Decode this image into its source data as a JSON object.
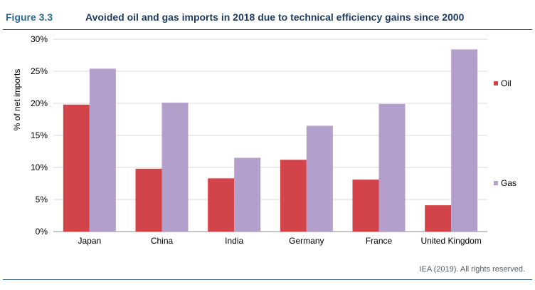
{
  "figure": {
    "label": "Figure 3.3",
    "title": "Avoided oil and gas imports in 2018 due to technical efficiency gains since 2000",
    "source": "IEA (2019). All rights reserved."
  },
  "colors": {
    "oil": "#d2444a",
    "gas": "#b39fcb",
    "grid": "#d9d9d9",
    "axis": "#8c8c8c"
  },
  "chart_data": {
    "type": "bar",
    "categories": [
      "Japan",
      "China",
      "India",
      "Germany",
      "France",
      "United Kingdom"
    ],
    "series": [
      {
        "name": "Oil",
        "values": [
          19.8,
          9.8,
          8.3,
          11.2,
          8.1,
          4.1
        ]
      },
      {
        "name": "Gas",
        "values": [
          25.4,
          20.1,
          11.5,
          16.5,
          19.9,
          28.4
        ]
      }
    ],
    "ylabel": "% of net imports",
    "ylim": [
      0,
      30
    ],
    "yticks": [
      "0%",
      "5%",
      "10%",
      "15%",
      "20%",
      "25%",
      "30%"
    ],
    "grid": true,
    "legend_position": "right"
  }
}
